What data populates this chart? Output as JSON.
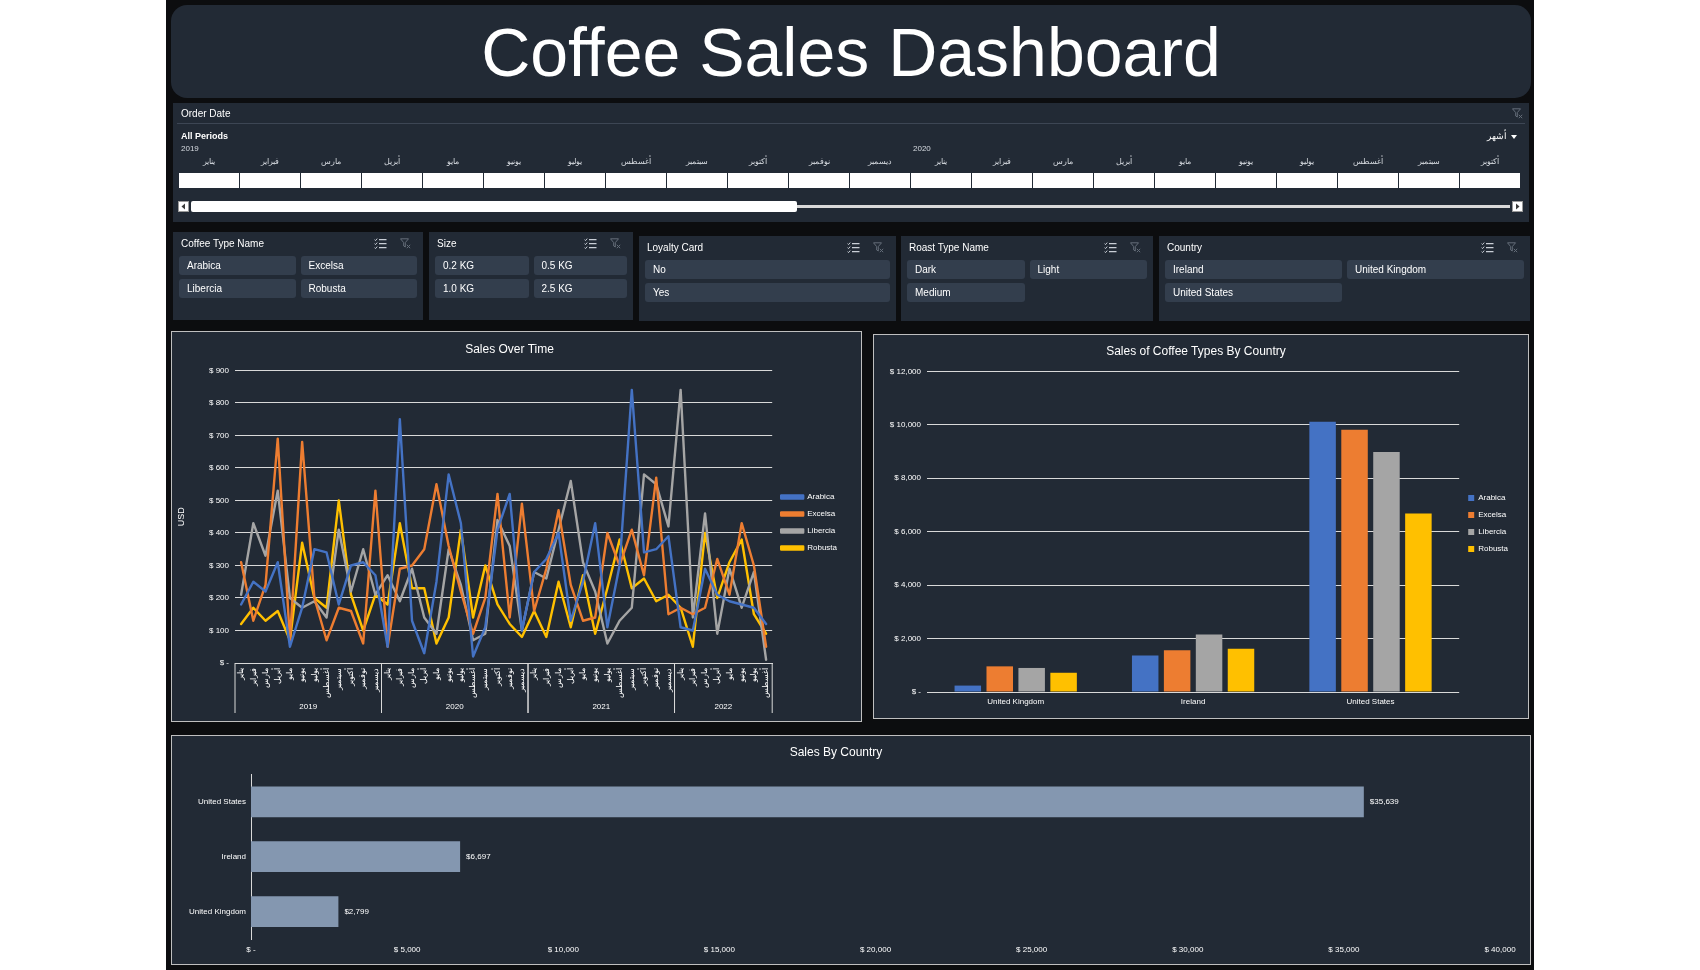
{
  "chart_data": [
    {
      "type": "other",
      "title": "Coffee Sales Dashboard"
    },
    {
      "type": "other",
      "title": "Order Date",
      "subtitle": "All Periods",
      "categories": [
        "يناير",
        "فبراير",
        "مارس",
        "أبريل",
        "مايو",
        "يونيو",
        "يوليو",
        "أغسطس",
        "سبتمبر",
        "أكتوبر",
        "نوفمبر",
        "ديسمبر",
        "يناير",
        "فبراير",
        "مارس",
        "أبريل",
        "مايو",
        "يونيو",
        "يوليو",
        "أغسطس",
        "سبتمبر",
        "أكتوبر"
      ],
      "annotations": [
        "2019",
        "2020",
        "أشهر"
      ]
    },
    {
      "type": "other",
      "title": "Coffee Type Name",
      "annotations": [
        "Arabica",
        "Excelsa",
        "Libercia",
        "Robusta"
      ]
    },
    {
      "type": "other",
      "title": "Size",
      "annotations": [
        "0.2 KG",
        "0.5 KG",
        "1.0 KG",
        "2.5 KG"
      ]
    },
    {
      "type": "other",
      "title": "Loyalty Card",
      "annotations": [
        "No",
        "Yes"
      ]
    },
    {
      "type": "other",
      "title": "Roast Type Name",
      "annotations": [
        "Dark",
        "Light",
        "Medium"
      ]
    },
    {
      "type": "other",
      "title": "Country",
      "annotations": [
        "Ireland",
        "United Kingdom",
        "United States"
      ]
    },
    {
      "type": "line",
      "title": "Sales Over Time",
      "ylabel": "USD",
      "categories": [
        "يناير",
        "فبراير",
        "مارس",
        "أبريل",
        "مايو",
        "يونيو",
        "يوليو",
        "أغسطس",
        "سبتمبر",
        "أكتوبر",
        "نوفمبر",
        "ديسمبر",
        "يناير",
        "فبراير",
        "مارس",
        "أبريل",
        "مايو",
        "يونيو",
        "يوليو",
        "أغسطس",
        "سبتمبر",
        "أكتوبر",
        "نوفمبر",
        "ديسمبر",
        "يناير",
        "فبراير",
        "مارس",
        "أبريل",
        "مايو",
        "يونيو",
        "يوليو",
        "أغسطس",
        "سبتمبر",
        "أكتوبر",
        "نوفمبر",
        "ديسمبر",
        "يناير",
        "فبراير",
        "مارس",
        "أبريل",
        "مايو",
        "يونيو",
        "يوليو",
        "أغسطس"
      ],
      "annotations": [
        "2019",
        "2020",
        "2021",
        "2022"
      ],
      "series": [
        {
          "name": "Arabica",
          "color": "#4472c4",
          "values": [
            180,
            250,
            220,
            310,
            50,
            170,
            350,
            340,
            180,
            300,
            310,
            270,
            50,
            750,
            130,
            30,
            250,
            580,
            430,
            20,
            110,
            410,
            520,
            100,
            280,
            320,
            400,
            130,
            250,
            430,
            110,
            300,
            840,
            340,
            350,
            390,
            110,
            100,
            290,
            210,
            190,
            180,
            170,
            120
          ]
        },
        {
          "name": "Excelsa",
          "color": "#ed7d31",
          "values": [
            310,
            130,
            240,
            690,
            70,
            680,
            200,
            70,
            170,
            160,
            60,
            530,
            50,
            290,
            300,
            350,
            550,
            360,
            220,
            90,
            200,
            520,
            140,
            490,
            160,
            290,
            470,
            240,
            130,
            140,
            400,
            300,
            410,
            270,
            570,
            150,
            170,
            150,
            170,
            320,
            210,
            430,
            300,
            50
          ]
        },
        {
          "name": "Libercia",
          "color": "#a5a5a5",
          "values": [
            210,
            430,
            330,
            530,
            200,
            170,
            190,
            140,
            410,
            220,
            350,
            210,
            270,
            190,
            290,
            140,
            90,
            350,
            240,
            70,
            90,
            440,
            360,
            100,
            280,
            260,
            410,
            560,
            310,
            220,
            60,
            130,
            170,
            580,
            550,
            420,
            840,
            140,
            460,
            90,
            290,
            170,
            280,
            10
          ]
        },
        {
          "name": "Robusta",
          "color": "#ffc000",
          "values": [
            120,
            170,
            130,
            160,
            70,
            370,
            200,
            170,
            500,
            210,
            100,
            210,
            180,
            430,
            230,
            230,
            60,
            140,
            410,
            140,
            300,
            180,
            120,
            80,
            160,
            80,
            250,
            110,
            270,
            90,
            230,
            380,
            230,
            260,
            190,
            210,
            170,
            50,
            400,
            200,
            310,
            380,
            150,
            90
          ]
        }
      ],
      "ylim": [
        0,
        900
      ],
      "yticks": [
        {
          "value": 0,
          "label": "$ -"
        },
        {
          "value": 100,
          "label": "$ 100"
        },
        {
          "value": 200,
          "label": "$ 200"
        },
        {
          "value": 300,
          "label": "$ 300"
        },
        {
          "value": 400,
          "label": "$ 400"
        },
        {
          "value": 500,
          "label": "$ 500"
        },
        {
          "value": 600,
          "label": "$ 600"
        },
        {
          "value": 700,
          "label": "$ 700"
        },
        {
          "value": 800,
          "label": "$ 800"
        },
        {
          "value": 900,
          "label": "$ 900"
        }
      ],
      "grid": "y",
      "legend": "right",
      "marker": "none",
      "line_style": "solid"
    },
    {
      "type": "bar",
      "title": "Sales of Coffee Types By Country",
      "categories": [
        "United Kingdom",
        "Ireland",
        "United States"
      ],
      "series": [
        {
          "name": "Arabica",
          "color": "#4472c4",
          "values": [
            240,
            1370,
            10120
          ]
        },
        {
          "name": "Excelsa",
          "color": "#ed7d31",
          "values": [
            960,
            1560,
            9820
          ]
        },
        {
          "name": "Libercia",
          "color": "#a5a5a5",
          "values": [
            900,
            2150,
            8980
          ]
        },
        {
          "name": "Robusta",
          "color": "#ffc000",
          "values": [
            720,
            1620,
            6680
          ]
        }
      ],
      "ylim": [
        0,
        12000
      ],
      "yticks": [
        {
          "value": 0,
          "label": "$ -"
        },
        {
          "value": 2000,
          "label": "$ 2,000"
        },
        {
          "value": 4000,
          "label": "$ 4,000"
        },
        {
          "value": 6000,
          "label": "$ 6,000"
        },
        {
          "value": 8000,
          "label": "$ 8,000"
        },
        {
          "value": 10000,
          "label": "$ 10,000"
        },
        {
          "value": 12000,
          "label": "$ 12,000"
        }
      ],
      "grid": "y",
      "legend": "right"
    },
    {
      "type": "bar",
      "title": "Sales By Country",
      "orientation": "horizontal",
      "categories": [
        "United States",
        "Ireland",
        "United Kingdom"
      ],
      "values": [
        35639,
        6697,
        2799
      ],
      "color": "#8497b0",
      "value_labels": [
        "$35,639",
        "$6,697",
        "$2,799"
      ],
      "xlim": [
        0,
        40000
      ],
      "xticks": [
        {
          "value": 0,
          "label": "$ -"
        },
        {
          "value": 5000,
          "label": "$ 5,000"
        },
        {
          "value": 10000,
          "label": "$ 10,000"
        },
        {
          "value": 15000,
          "label": "$ 15,000"
        },
        {
          "value": 20000,
          "label": "$ 20,000"
        },
        {
          "value": 25000,
          "label": "$ 25,000"
        },
        {
          "value": 30000,
          "label": "$ 30,000"
        },
        {
          "value": 35000,
          "label": "$ 35,000"
        },
        {
          "value": 40000,
          "label": "$ 40,000"
        }
      ]
    }
  ]
}
